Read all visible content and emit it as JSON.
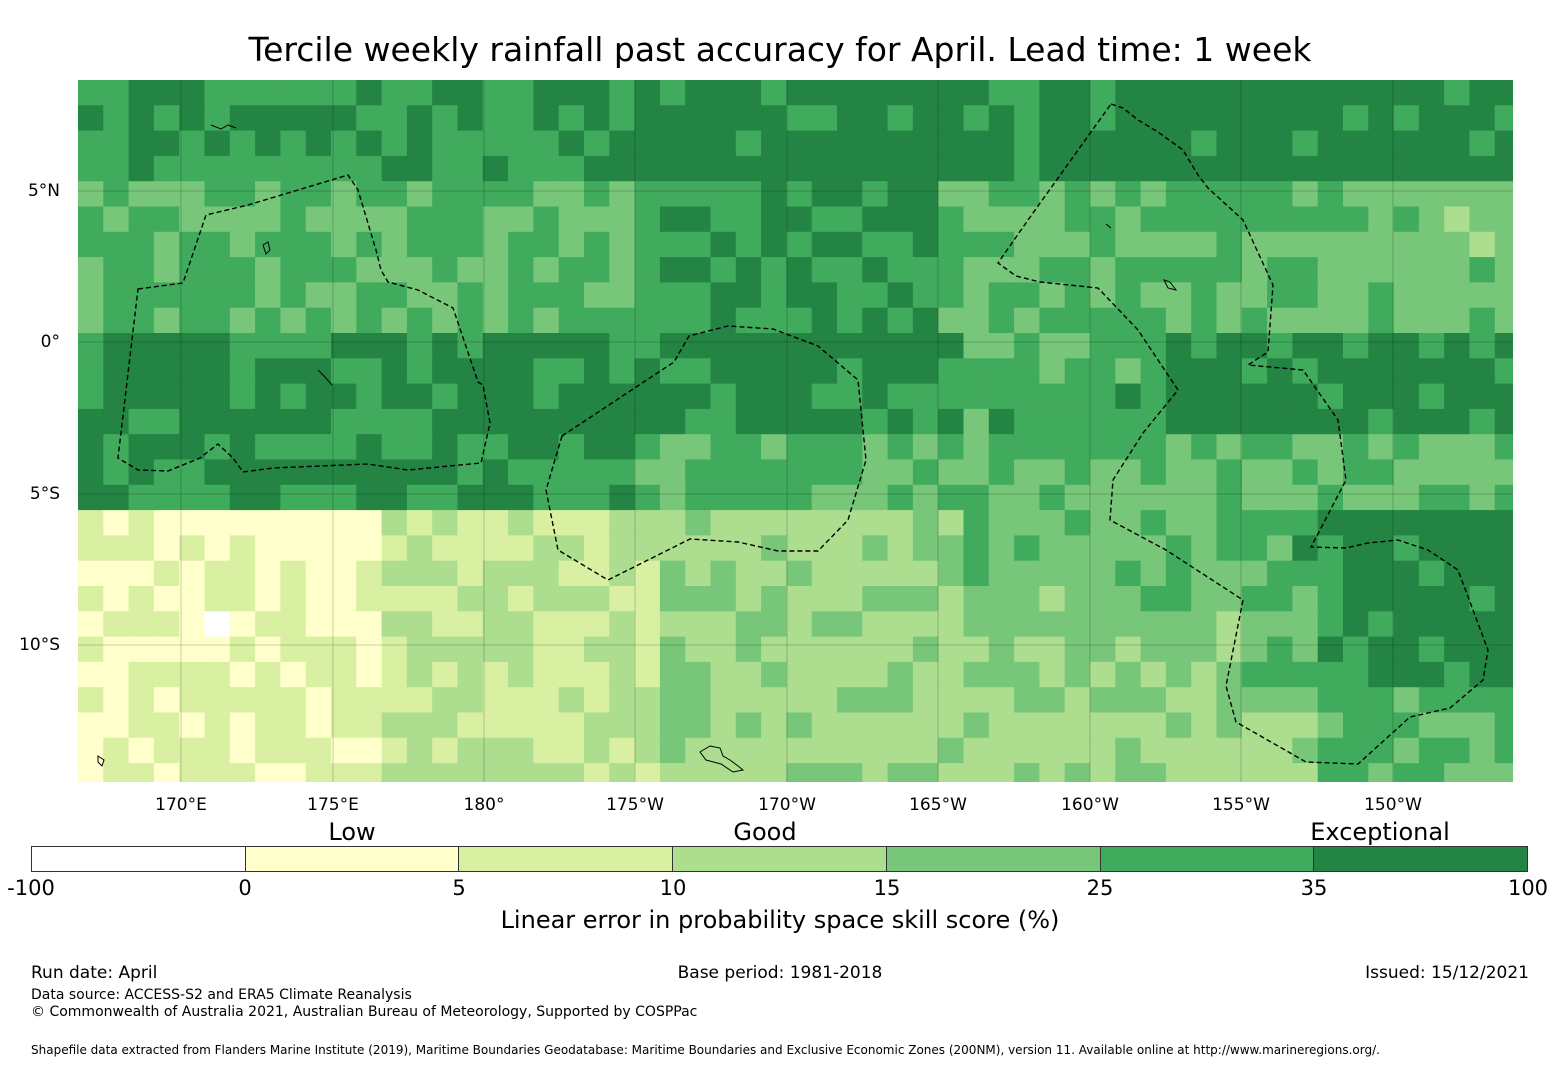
{
  "title": "Tercile weekly rainfall past accuracy for April. Lead time: 1 week",
  "lat_labels": [
    "5°N",
    "0°",
    "5°S",
    "10°S"
  ],
  "lon_labels": [
    "170°E",
    "175°E",
    "180°",
    "175°W",
    "170°W",
    "165°W",
    "160°W",
    "155°W",
    "150°W"
  ],
  "categories": [
    "Low",
    "Good",
    "Exceptional"
  ],
  "colorbar": {
    "title": "Linear error in probability space skill score (%)",
    "ticks": [
      "-100",
      "0",
      "5",
      "10",
      "15",
      "25",
      "35",
      "100"
    ],
    "colors": [
      "#ffffff",
      "#ffffcc",
      "#d9f0a3",
      "#addd8e",
      "#78c679",
      "#41ab5d",
      "#238443"
    ]
  },
  "footer": {
    "run_date": "Run date: April",
    "base_period": "Base period: 1981-2018",
    "issued": "Issued: 15/12/2021",
    "data_source": "Data source: ACCESS-S2 and ERA5 Climate Reanalysis",
    "copyright": "© Commonwealth of Australia 2021, Australian Bureau of Meteorology, Supported by COSPPac",
    "shapefile_note": "Shapefile data extracted from Flanders Marine Institute (2019), Maritime Boundaries Geodatabase: Maritime Boundaries and Exclusive Economic Zones (200NM), version 11. Available online at http://www.marineregions.org/."
  },
  "map": {
    "lon_range": [
      166.6,
      212.0
    ],
    "lat_range": [
      -14.5,
      8.6
    ],
    "grid_step_deg": 0.83,
    "skill_levels_description_bins": [
      0,
      5,
      10,
      15,
      25,
      35,
      100
    ],
    "eez_boundaries_dashed": true
  }
}
